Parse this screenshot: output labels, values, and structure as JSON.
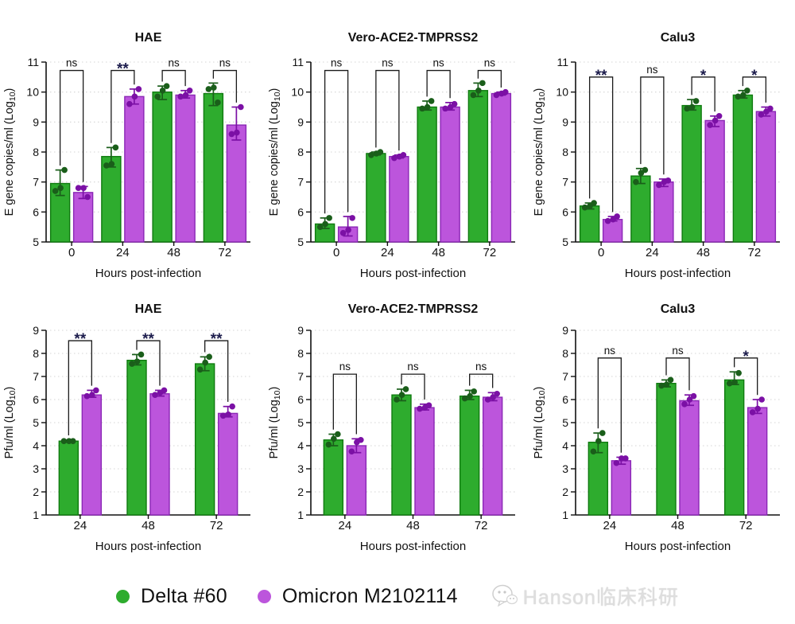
{
  "figure": {
    "background": "#ffffff"
  },
  "palette": {
    "delta_fill": "#2EAC2E",
    "delta_edge": "#0F7A0F",
    "delta_dot": "#1A5E1A",
    "omicron_fill": "#BC55DC",
    "omicron_edge": "#8A27B5",
    "omicron_dot": "#7B10A5",
    "axis": "#111111",
    "grid": "#d4d4d4",
    "sig_star": "#1c1c4c",
    "sig_text": "#111111"
  },
  "legend": {
    "items": [
      {
        "label": "Delta #60",
        "color": "#2EAC2E"
      },
      {
        "label": "Omicron M2102114",
        "color": "#BC55DC"
      }
    ]
  },
  "watermark": {
    "text": "Hanson临床科研"
  },
  "chart_data": [
    {
      "id": "egene-hae",
      "row": 1,
      "type": "bar",
      "title": "HAE",
      "xlabel": "Hours post-infection",
      "ylabel": "E gene copies/ml (Log10)",
      "ylim": [
        5,
        11
      ],
      "yticks": [
        5,
        6,
        7,
        8,
        9,
        10,
        11
      ],
      "categories": [
        "0",
        "24",
        "48",
        "72"
      ],
      "series": [
        {
          "name": "Delta #60",
          "values": [
            6.95,
            7.85,
            10.0,
            9.95
          ],
          "err_low": [
            6.55,
            7.5,
            9.75,
            9.55
          ],
          "err_high": [
            7.4,
            8.15,
            10.2,
            10.3
          ],
          "points": [
            [
              6.7,
              6.8,
              7.4
            ],
            [
              7.55,
              7.6,
              8.15
            ],
            [
              9.85,
              10.05,
              10.2
            ],
            [
              10.1,
              10.15,
              9.65
            ]
          ]
        },
        {
          "name": "Omicron M2102114",
          "values": [
            6.65,
            9.85,
            9.9,
            8.9
          ],
          "err_low": [
            6.45,
            9.6,
            9.8,
            8.4
          ],
          "err_high": [
            6.85,
            10.1,
            10.05,
            9.5
          ],
          "points": [
            [
              6.8,
              6.8,
              6.5
            ],
            [
              9.6,
              9.85,
              10.1
            ],
            [
              9.85,
              9.9,
              10.05
            ],
            [
              8.6,
              8.65,
              9.5
            ]
          ]
        }
      ],
      "significance": [
        {
          "label": "ns",
          "y": 10.72
        },
        {
          "label": "**",
          "y": 10.72
        },
        {
          "label": "ns",
          "y": 10.72
        },
        {
          "label": "ns",
          "y": 10.72
        }
      ]
    },
    {
      "id": "egene-vero",
      "row": 1,
      "type": "bar",
      "title": "Vero-ACE2-TMPRSS2",
      "xlabel": "Hours post-infection",
      "ylabel": "E gene copies/ml (Log10)",
      "ylim": [
        5,
        11
      ],
      "yticks": [
        5,
        6,
        7,
        8,
        9,
        10,
        11
      ],
      "categories": [
        "0",
        "24",
        "48",
        "72"
      ],
      "series": [
        {
          "name": "Delta #60",
          "values": [
            5.6,
            7.95,
            9.5,
            10.05
          ],
          "err_low": [
            5.45,
            7.9,
            9.4,
            9.85
          ],
          "err_high": [
            5.8,
            8.0,
            9.7,
            10.3
          ],
          "points": [
            [
              5.5,
              5.6,
              5.8
            ],
            [
              7.9,
              7.95,
              8.0
            ],
            [
              9.45,
              9.5,
              9.7
            ],
            [
              9.9,
              10.05,
              10.3
            ]
          ]
        },
        {
          "name": "Omicron M2102114",
          "values": [
            5.5,
            7.85,
            9.5,
            9.95
          ],
          "err_low": [
            5.2,
            7.8,
            9.4,
            9.9
          ],
          "err_high": [
            5.85,
            7.9,
            9.65,
            10.0
          ],
          "points": [
            [
              5.3,
              5.4,
              5.8
            ],
            [
              7.8,
              7.85,
              7.9
            ],
            [
              9.45,
              9.5,
              9.6
            ],
            [
              9.9,
              9.95,
              10.0
            ]
          ]
        }
      ],
      "significance": [
        {
          "label": "ns",
          "y": 10.72
        },
        {
          "label": "ns",
          "y": 10.72
        },
        {
          "label": "ns",
          "y": 10.72
        },
        {
          "label": "ns",
          "y": 10.72
        }
      ]
    },
    {
      "id": "egene-calu3",
      "row": 1,
      "type": "bar",
      "title": "Calu3",
      "xlabel": "Hours post-infection",
      "ylabel": "E gene copies/ml (Log10)",
      "ylim": [
        5,
        11
      ],
      "yticks": [
        5,
        6,
        7,
        8,
        9,
        10,
        11
      ],
      "categories": [
        "0",
        "24",
        "48",
        "72"
      ],
      "series": [
        {
          "name": "Delta #60",
          "values": [
            6.2,
            7.2,
            9.55,
            9.9
          ],
          "err_low": [
            6.1,
            6.95,
            9.4,
            9.8
          ],
          "err_high": [
            6.3,
            7.45,
            9.75,
            10.05
          ],
          "points": [
            [
              6.15,
              6.2,
              6.3
            ],
            [
              7.0,
              7.3,
              7.4
            ],
            [
              9.45,
              9.5,
              9.7
            ],
            [
              9.85,
              9.9,
              10.05
            ]
          ]
        },
        {
          "name": "Omicron M2102114",
          "values": [
            5.75,
            7.0,
            9.05,
            9.35
          ],
          "err_low": [
            5.7,
            6.85,
            8.85,
            9.2
          ],
          "err_high": [
            5.85,
            7.1,
            9.2,
            9.5
          ],
          "points": [
            [
              5.7,
              5.75,
              5.85
            ],
            [
              6.9,
              7.0,
              7.05
            ],
            [
              8.9,
              9.05,
              9.2
            ],
            [
              9.25,
              9.35,
              9.45
            ]
          ]
        }
      ],
      "significance": [
        {
          "label": "**",
          "y": 10.5
        },
        {
          "label": "ns",
          "y": 10.5
        },
        {
          "label": "*",
          "y": 10.5
        },
        {
          "label": "*",
          "y": 10.5
        }
      ]
    },
    {
      "id": "pfu-hae",
      "row": 2,
      "type": "bar",
      "title": "HAE",
      "xlabel": "Hours post-infection",
      "ylabel": "Pfu/ml (Log10)",
      "ylim": [
        1,
        9
      ],
      "yticks": [
        1,
        2,
        3,
        4,
        5,
        6,
        7,
        8,
        9
      ],
      "categories": [
        "24",
        "48",
        "72"
      ],
      "series": [
        {
          "name": "Delta #60",
          "values": [
            4.2,
            7.7,
            7.55
          ],
          "err_low": [
            4.15,
            7.5,
            7.25
          ],
          "err_high": [
            4.25,
            7.95,
            7.85
          ],
          "points": [
            [
              4.2,
              4.2,
              4.2
            ],
            [
              7.55,
              7.65,
              7.95
            ],
            [
              7.3,
              7.6,
              7.85
            ]
          ]
        },
        {
          "name": "Omicron M2102114",
          "values": [
            6.2,
            6.25,
            5.4
          ],
          "err_low": [
            6.1,
            6.15,
            5.25
          ],
          "err_high": [
            6.4,
            6.4,
            5.7
          ],
          "points": [
            [
              6.15,
              6.2,
              6.4
            ],
            [
              6.2,
              6.3,
              6.4
            ],
            [
              5.3,
              5.35,
              5.7
            ]
          ]
        }
      ],
      "significance": [
        {
          "label": "**",
          "y": 8.55
        },
        {
          "label": "**",
          "y": 8.55
        },
        {
          "label": "**",
          "y": 8.55
        }
      ]
    },
    {
      "id": "pfu-vero",
      "row": 2,
      "type": "bar",
      "title": "Vero-ACE2-TMPRSS2",
      "xlabel": "Hours post-infection",
      "ylabel": "Pfu/ml (Log10)",
      "ylim": [
        1,
        9
      ],
      "yticks": [
        1,
        2,
        3,
        4,
        5,
        6,
        7,
        8,
        9
      ],
      "categories": [
        "24",
        "48",
        "72"
      ],
      "series": [
        {
          "name": "Delta #60",
          "values": [
            4.25,
            6.2,
            6.15
          ],
          "err_low": [
            4.0,
            5.95,
            6.0
          ],
          "err_high": [
            4.5,
            6.45,
            6.4
          ],
          "points": [
            [
              4.05,
              4.3,
              4.5
            ],
            [
              6.0,
              6.2,
              6.45
            ],
            [
              6.05,
              6.15,
              6.35
            ]
          ]
        },
        {
          "name": "Omicron M2102114",
          "values": [
            4.0,
            5.65,
            6.1
          ],
          "err_low": [
            3.7,
            5.55,
            5.95
          ],
          "err_high": [
            4.3,
            5.8,
            6.3
          ],
          "points": [
            [
              3.75,
              4.15,
              4.25
            ],
            [
              5.6,
              5.65,
              5.75
            ],
            [
              6.0,
              6.1,
              6.25
            ]
          ]
        }
      ],
      "significance": [
        {
          "label": "ns",
          "y": 7.1
        },
        {
          "label": "ns",
          "y": 7.1
        },
        {
          "label": "ns",
          "y": 7.1
        }
      ]
    },
    {
      "id": "pfu-calu3",
      "row": 2,
      "type": "bar",
      "title": "Calu3",
      "xlabel": "Hours post-infection",
      "ylabel": "Pfu/ml (Log10)",
      "ylim": [
        1,
        9
      ],
      "yticks": [
        1,
        2,
        3,
        4,
        5,
        6,
        7,
        8,
        9
      ],
      "categories": [
        "24",
        "48",
        "72"
      ],
      "series": [
        {
          "name": "Delta #60",
          "values": [
            4.15,
            6.7,
            6.85
          ],
          "err_low": [
            3.7,
            6.55,
            6.65
          ],
          "err_high": [
            4.55,
            6.85,
            7.2
          ],
          "points": [
            [
              3.75,
              4.2,
              4.55
            ],
            [
              6.6,
              6.65,
              6.85
            ],
            [
              6.7,
              6.75,
              7.15
            ]
          ]
        },
        {
          "name": "Omicron M2102114",
          "values": [
            3.35,
            5.95,
            5.65
          ],
          "err_low": [
            3.2,
            5.75,
            5.4
          ],
          "err_high": [
            3.5,
            6.2,
            6.0
          ],
          "points": [
            [
              3.25,
              3.45,
              3.45
            ],
            [
              5.8,
              6.0,
              6.15
            ],
            [
              5.45,
              5.6,
              6.0
            ]
          ]
        }
      ],
      "significance": [
        {
          "label": "ns",
          "y": 7.8
        },
        {
          "label": "ns",
          "y": 7.8
        },
        {
          "label": "*",
          "y": 7.8
        }
      ]
    }
  ]
}
